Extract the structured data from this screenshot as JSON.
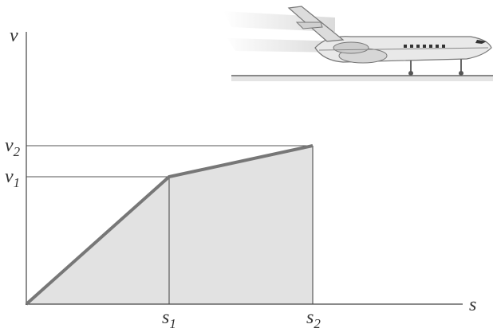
{
  "axes": {
    "vertical": "v",
    "horizontal": "s"
  },
  "labels": {
    "v_2": {
      "symbol": "v",
      "subscript": "2"
    },
    "v_1": {
      "symbol": "v",
      "subscript": "1"
    },
    "s_1": {
      "symbol": "s",
      "subscript": "1"
    },
    "s_2": {
      "symbol": "s",
      "subscript": "2"
    }
  }
}
